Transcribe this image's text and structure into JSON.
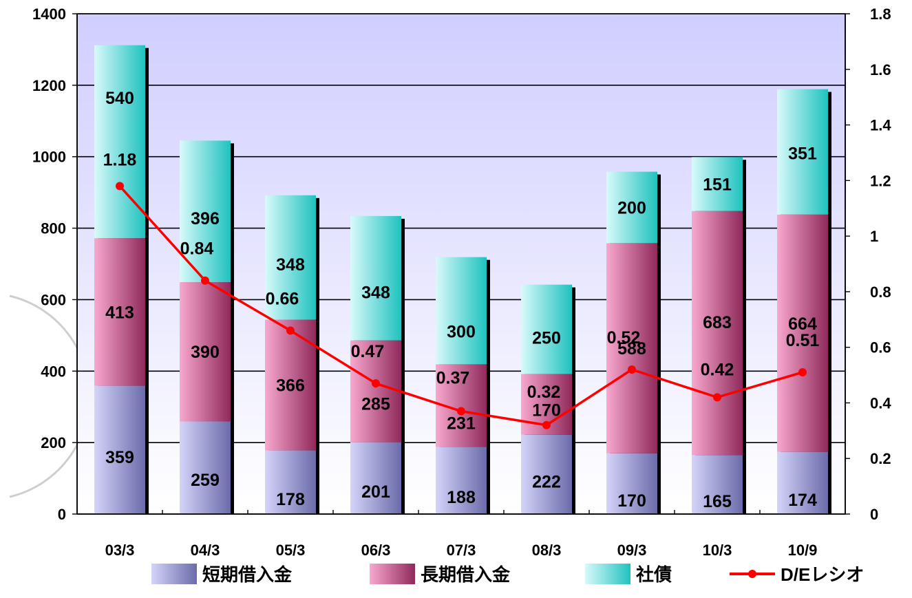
{
  "chart_data": {
    "type": "bar",
    "stacked": true,
    "categories": [
      "03/3",
      "04/3",
      "05/3",
      "06/3",
      "07/3",
      "08/3",
      "09/3",
      "10/3",
      "10/9"
    ],
    "series": [
      {
        "name": "短期借入金",
        "values": [
          359,
          259,
          178,
          201,
          188,
          222,
          170,
          165,
          174
        ],
        "color": "#8a8ad0"
      },
      {
        "name": "長期借入金",
        "values": [
          413,
          390,
          366,
          285,
          231,
          170,
          588,
          683,
          664
        ],
        "color": "#d85a95"
      },
      {
        "name": "社債",
        "values": [
          540,
          396,
          348,
          348,
          300,
          250,
          200,
          151,
          351
        ],
        "color": "#3fd2cc"
      }
    ],
    "line_series": {
      "name": "D/Eレシオ",
      "axis": "right",
      "values": [
        1.18,
        0.84,
        0.66,
        0.47,
        0.37,
        0.32,
        0.52,
        0.42,
        0.51
      ],
      "labels": [
        "1.18",
        "0.84",
        "0.66",
        "0.47",
        "0.37",
        "0.32",
        "0.52",
        "0.42",
        "0.51"
      ],
      "color": "#ff0000"
    },
    "ylim": [
      0,
      1400
    ],
    "yticks": [
      "0",
      "200",
      "400",
      "600",
      "800",
      "1000",
      "1200",
      "1400"
    ],
    "y2lim": [
      0,
      1.8
    ],
    "y2ticks": [
      "0",
      "0.2",
      "0.4",
      "0.6",
      "0.8",
      "1",
      "1.2",
      "1.4",
      "1.6",
      "1.8"
    ],
    "grid": true,
    "legend_position": "bottom",
    "plot_background": [
      "#d0ceff",
      "#ffffff"
    ]
  }
}
